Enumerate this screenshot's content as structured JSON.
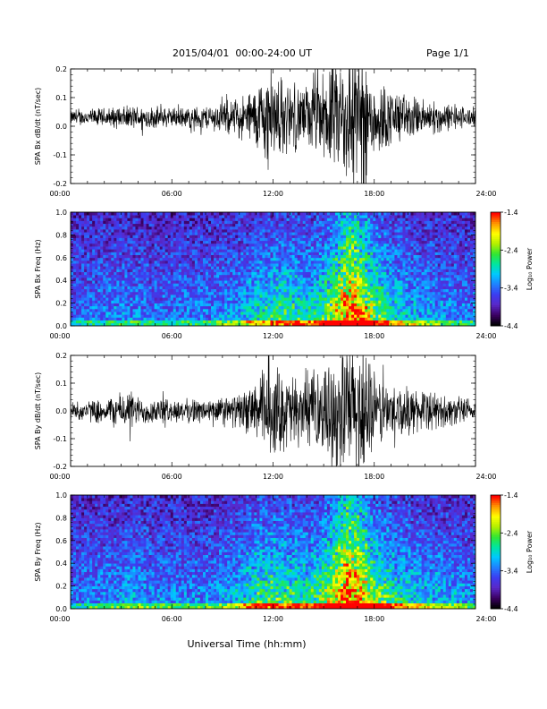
{
  "header": {
    "title": "2015/04/01  00:00-24:00 UT",
    "page": "Page 1/1"
  },
  "xlabel": "Universal Time (hh:mm)",
  "colors": {
    "background": "#ffffff",
    "trace": "#000000",
    "colormap": [
      "#000000",
      "#3c0064",
      "#5a28c8",
      "#3c3cf0",
      "#2080ff",
      "#00c8ff",
      "#00e6a0",
      "#32e632",
      "#b4f000",
      "#ffff00",
      "#ff9600",
      "#ff0000"
    ]
  },
  "chart_data": [
    {
      "type": "line",
      "ylabel": "SPA Bx dB/dt (nT/sec)",
      "xlim": [
        0,
        24
      ],
      "ylim": [
        -0.2,
        0.2
      ],
      "xticks": [
        "00:00",
        "06:00",
        "12:00",
        "18:00",
        "24:00"
      ],
      "yticks": [
        "-0.2",
        "-0.1",
        "0.0",
        "0.1",
        "0.2"
      ],
      "grid": false,
      "baseline": 0.03,
      "envelope_hours": [
        0,
        2,
        4,
        6,
        8,
        10,
        11,
        11.5,
        12,
        13,
        14,
        15,
        16,
        16.5,
        17,
        17.5,
        18,
        19,
        20,
        22,
        24
      ],
      "envelope_amplitude": [
        0.03,
        0.04,
        0.05,
        0.04,
        0.05,
        0.08,
        0.13,
        0.2,
        0.19,
        0.14,
        0.13,
        0.18,
        0.25,
        0.3,
        0.3,
        0.25,
        0.17,
        0.12,
        0.09,
        0.06,
        0.04
      ]
    },
    {
      "type": "heatmap",
      "ylabel": "SPA Bx Freq (Hz)",
      "xlim": [
        0,
        24
      ],
      "ylim": [
        0.0,
        1.0
      ],
      "xticks": [
        "00:00",
        "06:00",
        "12:00",
        "18:00",
        "24:00"
      ],
      "yticks": [
        "0.0",
        "0.2",
        "0.4",
        "0.6",
        "0.8",
        "1.0"
      ],
      "colorbar": {
        "label": "Log₁₀ Power",
        "range": [
          -4.4,
          -1.4
        ],
        "ticks": [
          "-1.4",
          "-2.4",
          "-3.4",
          "-4.4"
        ]
      },
      "activity_hours": [
        0,
        3,
        5,
        8,
        10,
        11,
        12,
        13,
        14,
        15,
        16,
        16.5,
        17,
        18,
        19,
        20,
        22,
        24
      ],
      "activity_level": [
        0.05,
        0.12,
        0.08,
        0.1,
        0.2,
        0.32,
        0.38,
        0.4,
        0.33,
        0.45,
        0.75,
        0.9,
        0.85,
        0.55,
        0.35,
        0.25,
        0.15,
        0.1
      ]
    },
    {
      "type": "line",
      "ylabel": "SPA By dB/dt (nT/sec)",
      "xlim": [
        0,
        24
      ],
      "ylim": [
        -0.2,
        0.2
      ],
      "xticks": [
        "00:00",
        "06:00",
        "12:00",
        "18:00",
        "24:00"
      ],
      "yticks": [
        "-0.2",
        "-0.1",
        "0.0",
        "0.1",
        "0.2"
      ],
      "grid": false,
      "baseline": 0.0,
      "envelope_hours": [
        0,
        2,
        3.5,
        4,
        6,
        8,
        10,
        11,
        11.5,
        12,
        13,
        14,
        15,
        16,
        16.5,
        17,
        17.5,
        18,
        19,
        20,
        22,
        24
      ],
      "envelope_amplitude": [
        0.04,
        0.05,
        0.09,
        0.06,
        0.05,
        0.05,
        0.07,
        0.12,
        0.2,
        0.2,
        0.15,
        0.14,
        0.18,
        0.26,
        0.3,
        0.3,
        0.25,
        0.16,
        0.12,
        0.1,
        0.07,
        0.05
      ]
    },
    {
      "type": "heatmap",
      "ylabel": "SPA By Freq (Hz)",
      "xlim": [
        0,
        24
      ],
      "ylim": [
        0.0,
        1.0
      ],
      "xticks": [
        "00:00",
        "06:00",
        "12:00",
        "18:00",
        "24:00"
      ],
      "yticks": [
        "0.0",
        "0.2",
        "0.4",
        "0.6",
        "0.8",
        "1.0"
      ],
      "colorbar": {
        "label": "Log₁₀ Power",
        "range": [
          -4.4,
          -1.4
        ],
        "ticks": [
          "-1.4",
          "-2.4",
          "-3.4",
          "-4.4"
        ]
      },
      "activity_hours": [
        0,
        3,
        3.5,
        5,
        8,
        10,
        11,
        12,
        13,
        14,
        15,
        16,
        16.5,
        17,
        18,
        19,
        20,
        22,
        24
      ],
      "activity_level": [
        0.08,
        0.15,
        0.22,
        0.12,
        0.12,
        0.25,
        0.4,
        0.45,
        0.42,
        0.38,
        0.5,
        0.8,
        0.92,
        0.85,
        0.55,
        0.4,
        0.3,
        0.2,
        0.15
      ]
    }
  ]
}
